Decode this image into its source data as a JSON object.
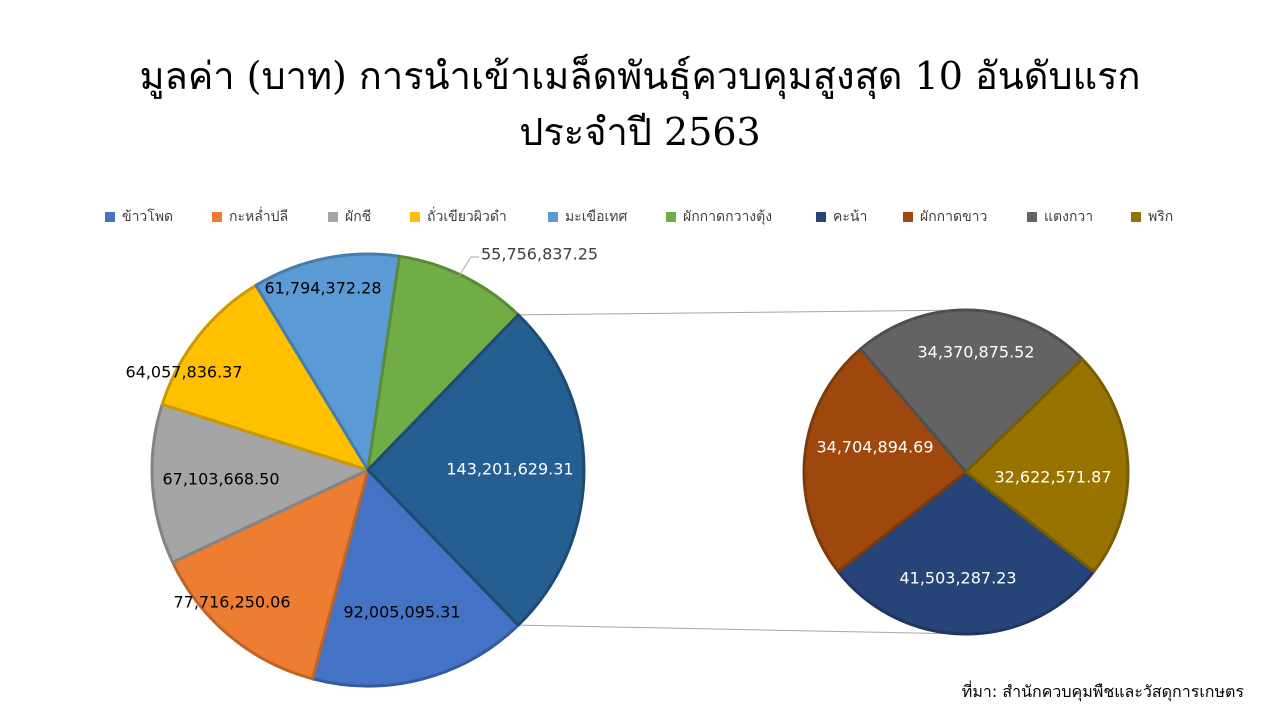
{
  "chart_data": {
    "type": "pie",
    "title_line1": "มูลค่า (บาท) การนำเข้าเมล็ดพันธุ์ควบคุมสูงสุด 10 อันดับแรก",
    "title_line2": "ประจำปี 2563",
    "legend_placement": "top",
    "slices": [
      {
        "name": "ข้าวโพด",
        "value": 92005095.31,
        "label": "92,005,095.31",
        "color": "#4472C4"
      },
      {
        "name": "กะหล่ำปลี",
        "value": 77716250.06,
        "label": "77,716,250.06",
        "color": "#ED7D31"
      },
      {
        "name": "ผักชี",
        "value": 67103668.5,
        "label": "67,103,668.50",
        "color": "#A5A5A5"
      },
      {
        "name": "ถั่วเขียวผิวดำ",
        "value": 64057836.37,
        "label": "64,057,836.37",
        "color": "#FFC000"
      },
      {
        "name": "มะเขือเทศ",
        "value": 61794372.28,
        "label": "61,794,372.28",
        "color": "#5B9BD5"
      },
      {
        "name": "ผักกาดกวางตุ้ง",
        "value": 55756837.25,
        "label": "55,756,837.25",
        "color": "#70AD47"
      },
      {
        "name": "คะน้า",
        "value": 41503287.23,
        "label": "41,503,287.23",
        "color": "#264478"
      },
      {
        "name": "ผักกาดขาว",
        "value": 34704894.69,
        "label": "34,704,894.69",
        "color": "#9E480E"
      },
      {
        "name": "แตงกวา",
        "value": 34370875.52,
        "label": "34,370,875.52",
        "color": "#636363"
      },
      {
        "name": "พริก",
        "value": 32622571.87,
        "label": "32,622,571.87",
        "color": "#997300"
      }
    ],
    "other_slice": {
      "value": 143201629.31,
      "label": "143,201,629.31",
      "color": "#255E91"
    }
  },
  "source": "ที่มา: สำนักควบคุมพืชและวัสดุการเกษตร"
}
